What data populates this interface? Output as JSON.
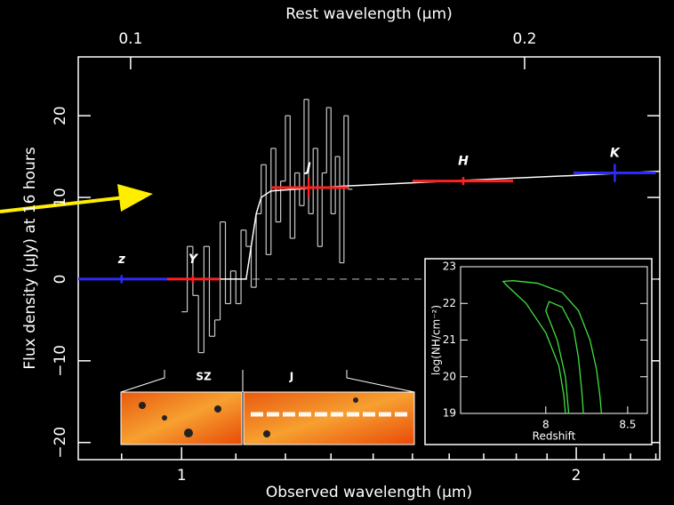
{
  "chart_data": [
    {
      "type": "spectrum",
      "xlabel": "Observed wavelength (μm)",
      "ylabel": "Flux density (μJy) at 16 hours",
      "x2label": "Rest wavelength (μm)",
      "log_x": true,
      "xlim": [
        0.834,
        2.316
      ],
      "xticks": [
        1,
        2
      ],
      "xminorticks": [
        0.9,
        1.1,
        1.2,
        1.3,
        1.4,
        1.5,
        1.6,
        1.7,
        1.8,
        1.9,
        2.1,
        2.2,
        2.3
      ],
      "x2lim": [
        0.0912,
        0.2537
      ],
      "x2ticks": [
        0.1,
        0.2
      ],
      "ylim": [
        -22.1,
        27.2
      ],
      "yticks": [
        {
          "value": -20,
          "label": "−20"
        },
        {
          "value": -10,
          "label": "−10"
        },
        0,
        10,
        20
      ],
      "zero_line": true,
      "spectrum": {
        "color": "#c8c8c8",
        "x": [
          1.0,
          1.01,
          1.02,
          1.03,
          1.04,
          1.05,
          1.06,
          1.07,
          1.08,
          1.09,
          1.1,
          1.11,
          1.12,
          1.13,
          1.14,
          1.15,
          1.16,
          1.17,
          1.18,
          1.19,
          1.2,
          1.21,
          1.22,
          1.23,
          1.24,
          1.25,
          1.26,
          1.27,
          1.28,
          1.29,
          1.3,
          1.31,
          1.32,
          1.33,
          1.34
        ],
        "values": [
          -4,
          4,
          -2,
          -9,
          4,
          -7,
          -5,
          7,
          -3,
          1,
          -3,
          6,
          4,
          -1,
          8,
          14,
          3,
          16,
          7,
          12,
          20,
          5,
          13,
          9,
          22,
          8,
          16,
          4,
          13,
          21,
          8,
          15,
          2,
          20,
          11
        ]
      },
      "model": {
        "color": "#ffffff",
        "x": [
          0.834,
          1.12,
          1.13,
          1.14,
          1.15,
          1.17,
          1.3,
          1.6,
          2.0,
          2.316
        ],
        "values": [
          0,
          0,
          4,
          8,
          10,
          10.8,
          11.3,
          12,
          12.7,
          13.2
        ]
      },
      "photometry": {
        "labels": [
          "z",
          "Y",
          "J",
          "H",
          "K"
        ],
        "colors": [
          "#2b2bff",
          "#ff2020",
          "#ff2020",
          "#ff2020",
          "#2b2bff"
        ],
        "x": [
          0.9,
          1.02,
          1.25,
          1.64,
          2.14
        ],
        "xmin": [
          0.834,
          0.975,
          1.17,
          1.5,
          1.99
        ],
        "xmax": [
          0.98,
          1.07,
          1.34,
          1.79,
          2.3
        ],
        "values": [
          0,
          0,
          11.2,
          12,
          13
        ],
        "yerr": [
          0.5,
          0.5,
          1.2,
          0.5,
          1.1
        ]
      },
      "images": [
        "SZ",
        "J"
      ]
    },
    {
      "type": "contour",
      "xlabel": "Redshift",
      "ylabel": "log(NH/cm⁻²)",
      "xlim": [
        7.48,
        8.62
      ],
      "xticks": [
        8,
        8.5
      ],
      "ylim": [
        19,
        23
      ],
      "yticks": [
        19,
        20,
        21,
        22,
        23
      ],
      "series": [
        {
          "color": "#40e040",
          "x": [
            8.12,
            8.11,
            8.08,
            8.0,
            7.88,
            7.76,
            7.74,
            7.8,
            7.95,
            8.1,
            8.2,
            8.27,
            8.31,
            8.33,
            8.34
          ],
          "values": [
            19,
            19.5,
            20.3,
            21.2,
            22,
            22.5,
            22.6,
            22.62,
            22.55,
            22.3,
            21.8,
            21,
            20.2,
            19.5,
            19
          ]
        },
        {
          "color": "#40e040",
          "x": [
            8.14,
            8.12,
            8.07,
            8.0,
            8.02,
            8.1,
            8.17,
            8.2,
            8.22,
            8.23
          ],
          "values": [
            19,
            20,
            21,
            21.8,
            22.05,
            21.9,
            21.3,
            20.5,
            19.6,
            19
          ]
        }
      ]
    }
  ]
}
